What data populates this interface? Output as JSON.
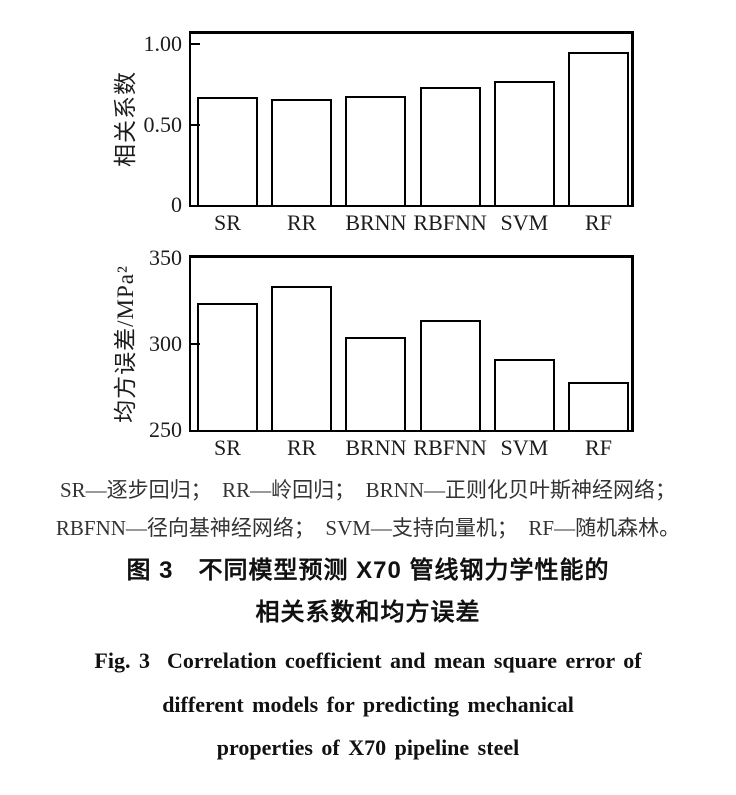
{
  "figure": {
    "legend_notes": [
      "SR—逐步回归；　RR—岭回归；　BRNN—正则化贝叶斯神经网络；",
      "RBFNN—径向基神经网络；　SVM—支持向量机；　RF—随机森林。"
    ],
    "caption_zh": [
      "图 3　不同模型预测 X70 管线钢力学性能的",
      "相关系数和均方误差"
    ],
    "caption_en": [
      "Fig. 3  Correlation coefficient and mean square error of",
      "different models for predicting mechanical",
      "properties of X70 pipeline steel"
    ]
  },
  "colors": {
    "ink": "#000000",
    "background": "#ffffff",
    "bar_fill": "#ffffff"
  },
  "chart_data": [
    {
      "type": "bar",
      "title": "",
      "xlabel": "",
      "ylabel": "相关系数",
      "categories": [
        "SR",
        "RR",
        "BRNN",
        "RBFNN",
        "SVM",
        "RF"
      ],
      "values": [
        0.67,
        0.66,
        0.68,
        0.73,
        0.77,
        0.95
      ],
      "ylim": [
        0,
        1.0
      ],
      "yticks": [
        {
          "label": "1.00",
          "value": 1.0
        },
        {
          "label": "0.50",
          "value": 0.5
        },
        {
          "label": "0",
          "value": 0
        }
      ],
      "grid": false,
      "legend": null
    },
    {
      "type": "bar",
      "title": "",
      "xlabel": "",
      "ylabel": "均方误差/MPa²",
      "categories": [
        "SR",
        "RR",
        "BRNN",
        "RBFNN",
        "SVM",
        "RF"
      ],
      "values": [
        324,
        334,
        304,
        314,
        291,
        278
      ],
      "ylim": [
        250,
        350
      ],
      "yticks": [
        {
          "label": "350",
          "value": 350
        },
        {
          "label": "300",
          "value": 300
        },
        {
          "label": "250",
          "value": 250
        }
      ],
      "grid": false,
      "legend": null
    }
  ]
}
